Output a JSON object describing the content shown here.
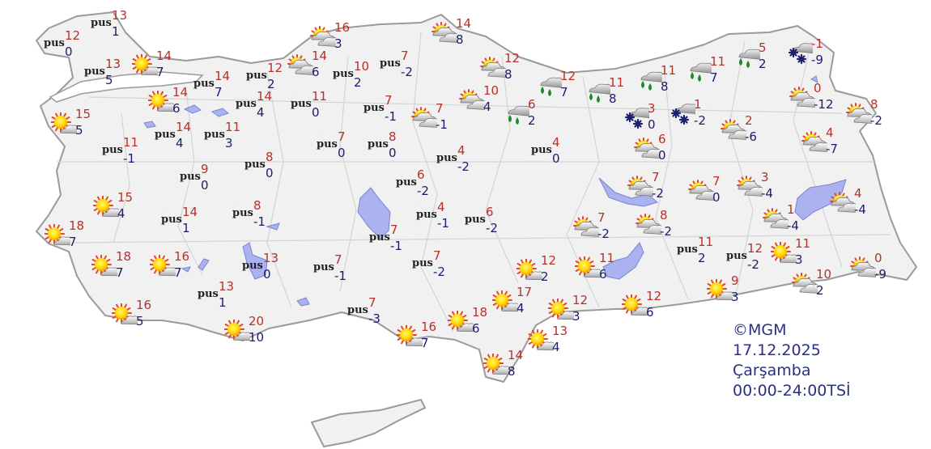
{
  "caption": {
    "copyright": "©MGM",
    "date": "17.12.2025",
    "day": "Çarşamba",
    "period": "00:00-24:00TSİ"
  },
  "labels": {
    "fog": "pus"
  },
  "colors": {
    "land": "#f1f1f1",
    "border": "#9a9a9a",
    "water": "#aab2ef",
    "max_temp": "#b5312a",
    "min_temp": "#1c1c6b",
    "rain_drop": "#1f8a2a",
    "snow": "#1a1f6e",
    "caption": "#2a3080"
  },
  "stations": [
    {
      "type": "fog",
      "max": 13,
      "min": 1
    },
    {
      "type": "fog",
      "max": 12,
      "min": 0
    },
    {
      "type": "fog",
      "max": 13,
      "min": 5
    },
    {
      "type": "sunny",
      "max": 14,
      "min": 7
    },
    {
      "type": "fog",
      "max": 14,
      "min": 7
    },
    {
      "type": "sunny",
      "max": 14,
      "min": 6
    },
    {
      "type": "sunny",
      "max": 15,
      "min": 5
    },
    {
      "type": "fog",
      "max": 12,
      "min": 2
    },
    {
      "type": "partly-cloudy",
      "max": 14,
      "min": 6
    },
    {
      "type": "fog",
      "max": 14,
      "min": 4
    },
    {
      "type": "fog",
      "max": 11,
      "min": 0
    },
    {
      "type": "fog",
      "max": 14,
      "min": 4
    },
    {
      "type": "fog",
      "max": 11,
      "min": 3
    },
    {
      "type": "fog",
      "max": 11,
      "min": -1
    },
    {
      "type": "fog",
      "max": 9,
      "min": 0
    },
    {
      "type": "fog",
      "max": 8,
      "min": 0
    },
    {
      "type": "sunny",
      "max": 15,
      "min": 4
    },
    {
      "type": "fog",
      "max": 14,
      "min": 1
    },
    {
      "type": "fog",
      "max": 8,
      "min": -1
    },
    {
      "type": "sunny",
      "max": 18,
      "min": 7
    },
    {
      "type": "sunny",
      "max": 18,
      "min": 7
    },
    {
      "type": "sunny",
      "max": 16,
      "min": 7
    },
    {
      "type": "fog",
      "max": 13,
      "min": 1
    },
    {
      "type": "fog",
      "max": 13,
      "min": 0
    },
    {
      "type": "sunny",
      "max": 16,
      "min": 5
    },
    {
      "type": "sunny",
      "max": 20,
      "min": 10
    },
    {
      "type": "fog",
      "max": 7,
      "min": -1
    },
    {
      "type": "fog",
      "max": 7,
      "min": -3
    },
    {
      "type": "sunny",
      "max": 16,
      "min": 7
    },
    {
      "type": "partly-cloudy",
      "max": 16,
      "min": 3
    },
    {
      "type": "fog",
      "max": 10,
      "min": 2
    },
    {
      "type": "fog",
      "max": 7,
      "min": -2
    },
    {
      "type": "partly-cloudy",
      "max": 14,
      "min": 8
    },
    {
      "type": "fog",
      "max": 7,
      "min": -1
    },
    {
      "type": "partly-cloudy",
      "max": 7,
      "min": -1
    },
    {
      "type": "fog",
      "max": 7,
      "min": 0
    },
    {
      "type": "fog",
      "max": 8,
      "min": 0
    },
    {
      "type": "partly-cloudy",
      "max": 12,
      "min": 8
    },
    {
      "type": "partly-cloudy",
      "max": 10,
      "min": 4
    },
    {
      "type": "rain",
      "max": 12,
      "min": 7
    },
    {
      "type": "rain",
      "max": 11,
      "min": 8
    },
    {
      "type": "rain",
      "max": 6,
      "min": 2
    },
    {
      "type": "fog",
      "max": 4,
      "min": -2
    },
    {
      "type": "fog",
      "max": 4,
      "min": 0
    },
    {
      "type": "fog",
      "max": 6,
      "min": -2
    },
    {
      "type": "fog",
      "max": 4,
      "min": -1
    },
    {
      "type": "fog",
      "max": 6,
      "min": -2
    },
    {
      "type": "fog",
      "max": 7,
      "min": -1
    },
    {
      "type": "fog",
      "max": 7,
      "min": -2
    },
    {
      "type": "partly-cloudy",
      "max": 7,
      "min": -2
    },
    {
      "type": "partly-cloudy",
      "max": 8,
      "min": -2
    },
    {
      "type": "rain",
      "max": 11,
      "min": 8
    },
    {
      "type": "rain",
      "max": 11,
      "min": 7
    },
    {
      "type": "rain",
      "max": 5,
      "min": 2
    },
    {
      "type": "snow",
      "max": -1,
      "min": -9
    },
    {
      "type": "snow",
      "max": 3,
      "min": 0
    },
    {
      "type": "snow",
      "max": 1,
      "min": -2
    },
    {
      "type": "partly-cloudy",
      "max": 2,
      "min": -6
    },
    {
      "type": "partly-cloudy",
      "max": 0,
      "min": -12
    },
    {
      "type": "partly-cloudy",
      "max": 8,
      "min": -2
    },
    {
      "type": "partly-cloudy",
      "max": 6,
      "min": 0
    },
    {
      "type": "partly-cloudy",
      "max": 4,
      "min": -7
    },
    {
      "type": "partly-cloudy",
      "max": 7,
      "min": -2
    },
    {
      "type": "partly-cloudy",
      "max": 7,
      "min": 0
    },
    {
      "type": "partly-cloudy",
      "max": 3,
      "min": -4
    },
    {
      "type": "partly-cloudy",
      "max": 4,
      "min": -4
    },
    {
      "type": "partly-cloudy",
      "max": 1,
      "min": -4
    },
    {
      "type": "fog",
      "max": 11,
      "min": 2
    },
    {
      "type": "fog",
      "max": 12,
      "min": -2
    },
    {
      "type": "sunny",
      "max": 11,
      "min": 3
    },
    {
      "type": "partly-cloudy",
      "max": 0,
      "min": -9
    },
    {
      "type": "partly-cloudy",
      "max": 10,
      "min": 2
    },
    {
      "type": "sunny",
      "max": 9,
      "min": 3
    },
    {
      "type": "sunny",
      "max": 12,
      "min": 2
    },
    {
      "type": "sunny",
      "max": 11,
      "min": 6
    },
    {
      "type": "sunny",
      "max": 17,
      "min": 4
    },
    {
      "type": "sunny",
      "max": 12,
      "min": 3
    },
    {
      "type": "sunny",
      "max": 12,
      "min": 6
    },
    {
      "type": "sunny",
      "max": 18,
      "min": 6
    },
    {
      "type": "sunny",
      "max": 13,
      "min": 4
    },
    {
      "type": "sunny",
      "max": 14,
      "min": 8
    }
  ]
}
